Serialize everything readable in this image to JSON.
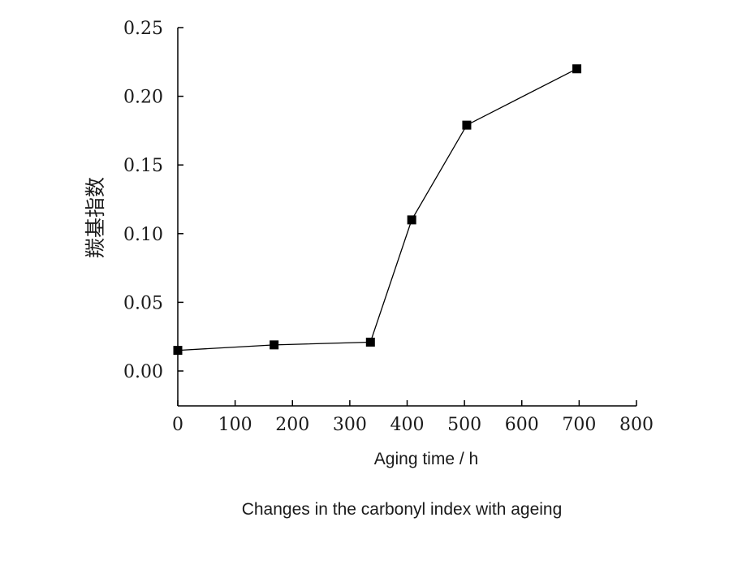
{
  "chart_data": {
    "type": "line",
    "title": "",
    "xlabel": "Aging time / h",
    "ylabel": "羰基指数",
    "xlim": [
      0,
      800
    ],
    "ylim": [
      0.0,
      0.25
    ],
    "x_ticks": [
      0,
      100,
      200,
      300,
      400,
      500,
      600,
      700,
      800
    ],
    "y_ticks": [
      0.0,
      0.05,
      0.1,
      0.15,
      0.2,
      0.25
    ],
    "y_tick_labels": [
      "0.00",
      "0.05",
      "0.10",
      "0.15",
      "0.20",
      "0.25"
    ],
    "grid": false,
    "series": [
      {
        "marker": "square",
        "color": "#000000",
        "x": [
          0,
          168,
          336,
          408,
          504,
          696
        ],
        "y": [
          0.015,
          0.019,
          0.021,
          0.11,
          0.179,
          0.22
        ]
      }
    ]
  },
  "caption": "Changes in the carbonyl index with ageing"
}
